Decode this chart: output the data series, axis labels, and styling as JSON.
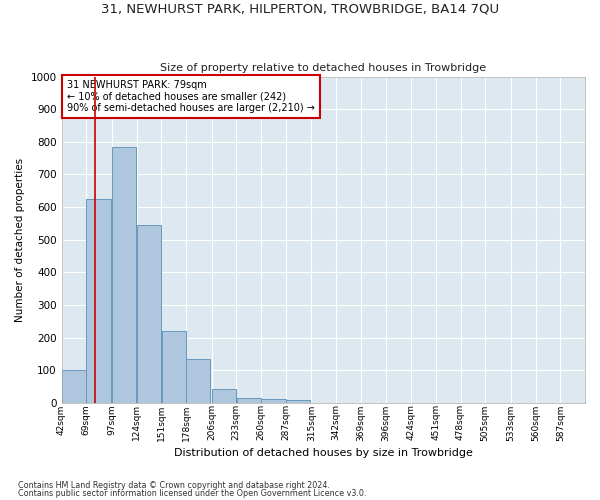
{
  "title": "31, NEWHURST PARK, HILPERTON, TROWBRIDGE, BA14 7QU",
  "subtitle": "Size of property relative to detached houses in Trowbridge",
  "xlabel": "Distribution of detached houses by size in Trowbridge",
  "ylabel": "Number of detached properties",
  "bin_labels": [
    "42sqm",
    "69sqm",
    "97sqm",
    "124sqm",
    "151sqm",
    "178sqm",
    "206sqm",
    "233sqm",
    "260sqm",
    "287sqm",
    "315sqm",
    "342sqm",
    "369sqm",
    "396sqm",
    "424sqm",
    "451sqm",
    "478sqm",
    "505sqm",
    "533sqm",
    "560sqm",
    "587sqm"
  ],
  "bin_edges": [
    42,
    69,
    97,
    124,
    151,
    178,
    206,
    233,
    260,
    287,
    315,
    342,
    369,
    396,
    424,
    451,
    478,
    505,
    533,
    560,
    587
  ],
  "bar_heights": [
    100,
    625,
    785,
    545,
    220,
    135,
    42,
    15,
    12,
    10,
    0,
    0,
    0,
    0,
    0,
    0,
    0,
    0,
    0,
    0
  ],
  "bar_color": "#aec6de",
  "bar_edgecolor": "#6699bb",
  "background_color": "#dde8f0",
  "grid_color": "#ffffff",
  "property_size": 79,
  "vline_color": "#cc0000",
  "annotation_text": "31 NEWHURST PARK: 79sqm\n← 10% of detached houses are smaller (242)\n90% of semi-detached houses are larger (2,210) →",
  "annotation_box_color": "#cc0000",
  "ylim": [
    0,
    1000
  ],
  "yticks": [
    0,
    100,
    200,
    300,
    400,
    500,
    600,
    700,
    800,
    900,
    1000
  ],
  "footer_line1": "Contains HM Land Registry data © Crown copyright and database right 2024.",
  "footer_line2": "Contains public sector information licensed under the Open Government Licence v3.0."
}
